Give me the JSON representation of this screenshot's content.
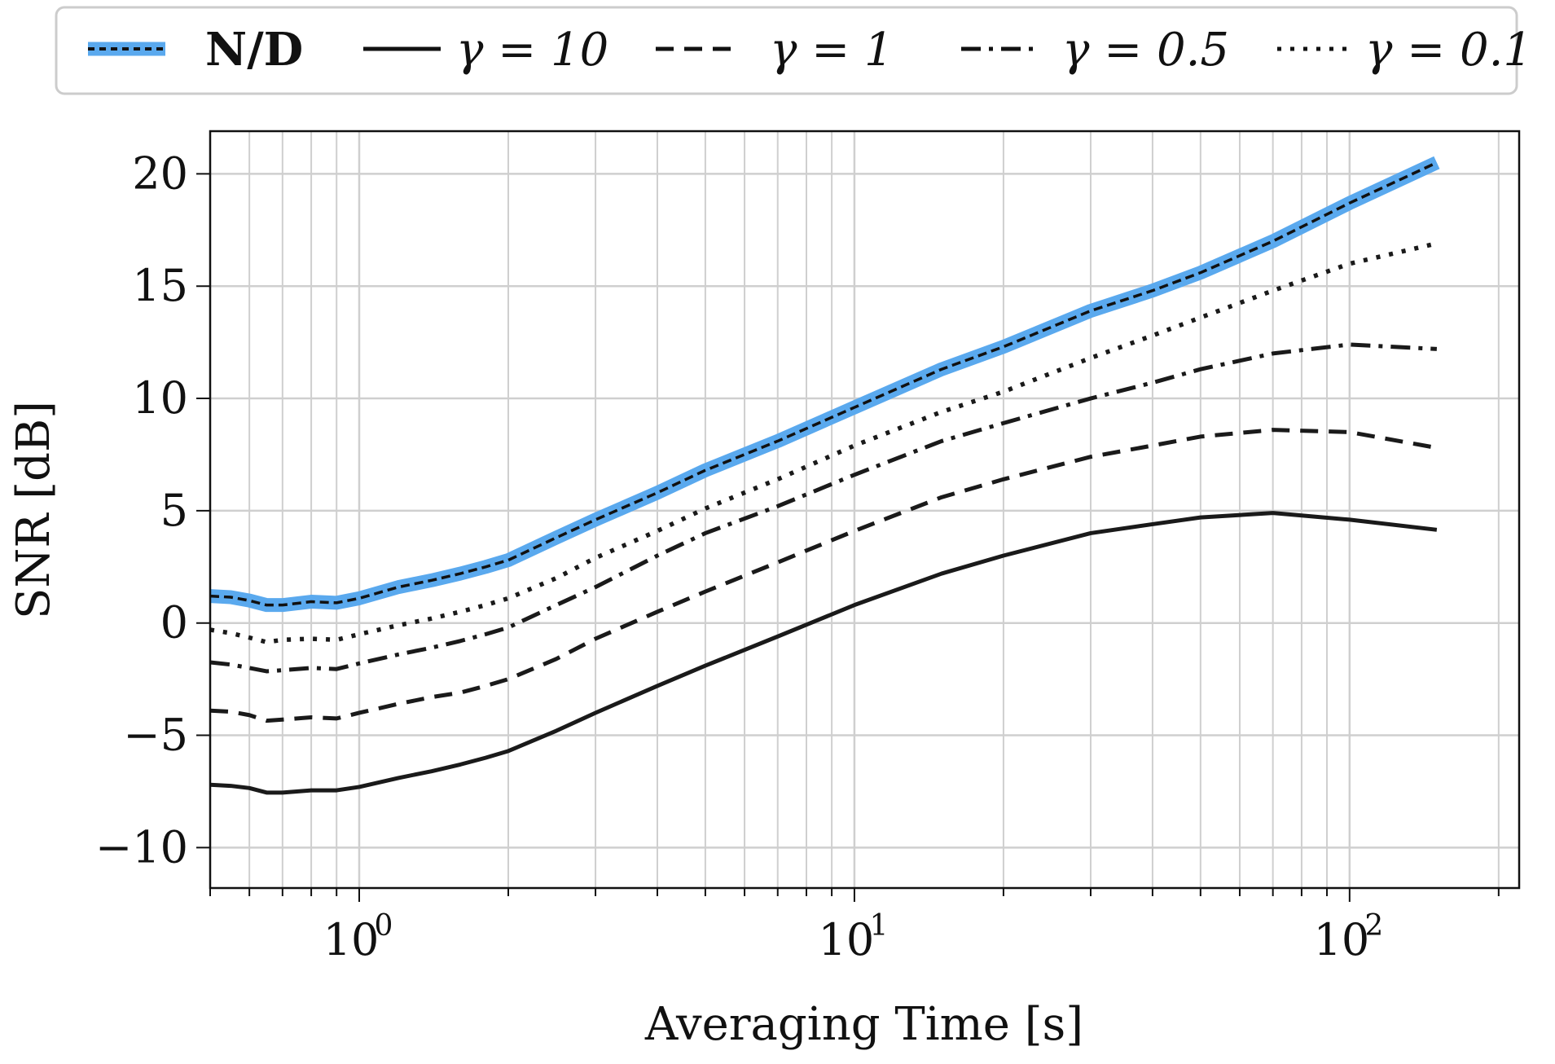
{
  "chart_data": {
    "type": "line",
    "xscale": "log",
    "xlabel": "Averaging Time [s]",
    "ylabel": "SNR [dB]",
    "xlim": [
      0.5,
      220
    ],
    "ylim": [
      -11.8,
      21.9
    ],
    "grid": true,
    "legend_position": "top",
    "x_ticks_major": [
      {
        "value": 1,
        "label": "10",
        "exp": "0"
      },
      {
        "value": 10,
        "label": "10",
        "exp": "1"
      },
      {
        "value": 100,
        "label": "10",
        "exp": "2"
      }
    ],
    "y_ticks": [
      {
        "value": -10,
        "label": "−10"
      },
      {
        "value": -5,
        "label": "−5"
      },
      {
        "value": 0,
        "label": "0"
      },
      {
        "value": 5,
        "label": "5"
      },
      {
        "value": 10,
        "label": "10"
      },
      {
        "value": 15,
        "label": "15"
      },
      {
        "value": 20,
        "label": "20"
      }
    ],
    "series": [
      {
        "name": "N/D",
        "legend_label": "N/D",
        "style": "nd",
        "x": [
          0.5,
          0.55,
          0.6,
          0.65,
          0.7,
          0.8,
          0.9,
          1.0,
          1.2,
          1.4,
          1.6,
          1.8,
          2,
          2.5,
          3,
          4,
          5,
          7,
          10,
          15,
          20,
          30,
          40,
          50,
          70,
          100,
          150
        ],
        "y": [
          1.2,
          1.15,
          1.0,
          0.8,
          0.8,
          0.95,
          0.9,
          1.1,
          1.6,
          1.9,
          2.2,
          2.5,
          2.8,
          3.8,
          4.6,
          5.8,
          6.8,
          8.1,
          9.6,
          11.3,
          12.3,
          13.9,
          14.8,
          15.6,
          17.0,
          18.7,
          20.5
        ]
      },
      {
        "name": "gamma=10",
        "legend_label": "γ = 10",
        "style": "solid",
        "x": [
          0.5,
          0.55,
          0.6,
          0.65,
          0.7,
          0.8,
          0.9,
          1.0,
          1.2,
          1.4,
          1.6,
          1.8,
          2,
          2.5,
          3,
          4,
          5,
          7,
          10,
          15,
          20,
          30,
          40,
          50,
          70,
          100,
          150
        ],
        "y": [
          -7.2,
          -7.25,
          -7.35,
          -7.55,
          -7.55,
          -7.45,
          -7.45,
          -7.3,
          -6.9,
          -6.6,
          -6.3,
          -6.0,
          -5.7,
          -4.8,
          -4.0,
          -2.8,
          -1.9,
          -0.6,
          0.8,
          2.2,
          3.0,
          4.0,
          4.4,
          4.7,
          4.9,
          4.6,
          4.15
        ]
      },
      {
        "name": "gamma=1",
        "legend_label": "γ = 1",
        "style": "dashed",
        "x": [
          0.5,
          0.55,
          0.6,
          0.65,
          0.7,
          0.8,
          0.9,
          1.0,
          1.2,
          1.4,
          1.6,
          1.8,
          2,
          2.5,
          3,
          4,
          5,
          7,
          10,
          15,
          20,
          30,
          40,
          50,
          70,
          100,
          150
        ],
        "y": [
          -3.9,
          -3.95,
          -4.1,
          -4.35,
          -4.3,
          -4.2,
          -4.25,
          -4.0,
          -3.6,
          -3.3,
          -3.1,
          -2.8,
          -2.5,
          -1.6,
          -0.7,
          0.5,
          1.4,
          2.7,
          4.1,
          5.6,
          6.4,
          7.4,
          7.9,
          8.3,
          8.6,
          8.5,
          7.8
        ]
      },
      {
        "name": "gamma=0.5",
        "legend_label": "γ = 0.5",
        "style": "dashdot",
        "x": [
          0.5,
          0.55,
          0.6,
          0.65,
          0.7,
          0.8,
          0.9,
          1.0,
          1.2,
          1.4,
          1.6,
          1.8,
          2,
          2.5,
          3,
          4,
          5,
          7,
          10,
          15,
          20,
          30,
          40,
          50,
          70,
          100,
          150
        ],
        "y": [
          -1.75,
          -1.85,
          -2.0,
          -2.15,
          -2.1,
          -2.0,
          -2.05,
          -1.8,
          -1.4,
          -1.1,
          -0.8,
          -0.5,
          -0.2,
          0.8,
          1.6,
          3.0,
          4.0,
          5.2,
          6.6,
          8.1,
          8.9,
          10.0,
          10.7,
          11.3,
          12.0,
          12.4,
          12.2
        ]
      },
      {
        "name": "gamma=0.1",
        "legend_label": "γ = 0.1",
        "style": "dotted",
        "x": [
          0.5,
          0.55,
          0.6,
          0.65,
          0.7,
          0.8,
          0.9,
          1.0,
          1.2,
          1.4,
          1.6,
          1.8,
          2,
          2.5,
          3,
          4,
          5,
          7,
          10,
          15,
          20,
          30,
          40,
          50,
          70,
          100,
          150
        ],
        "y": [
          -0.3,
          -0.45,
          -0.65,
          -0.85,
          -0.75,
          -0.7,
          -0.75,
          -0.5,
          -0.1,
          0.2,
          0.5,
          0.8,
          1.1,
          2.0,
          2.9,
          4.1,
          5.1,
          6.4,
          7.9,
          9.4,
          10.3,
          11.8,
          12.8,
          13.6,
          14.8,
          16.0,
          16.9
        ]
      }
    ]
  }
}
